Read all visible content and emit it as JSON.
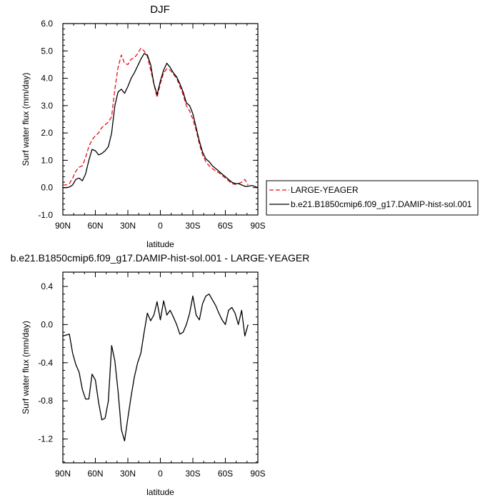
{
  "chart_data": [
    {
      "type": "line",
      "title": "DJF",
      "xlabel": "latitude",
      "ylabel": "Surf water flux (mm/day)",
      "xlim": [
        90,
        -90
      ],
      "ylim": [
        -1.0,
        6.0
      ],
      "x_ticks": [
        90,
        60,
        30,
        0,
        -30,
        -60,
        -90
      ],
      "x_tick_labels": [
        "90N",
        "60N",
        "30N",
        "0",
        "30S",
        "60S",
        "90S"
      ],
      "y_ticks": [
        -1.0,
        0.0,
        1.0,
        2.0,
        3.0,
        4.0,
        5.0,
        6.0
      ],
      "y_tick_labels": [
        "-1.0",
        "0.0",
        "1.0",
        "2.0",
        "3.0",
        "4.0",
        "5.0",
        "6.0"
      ],
      "legend_position": "right",
      "series": [
        {
          "name": "LARGE-YEAGER",
          "color": "#e8101a",
          "dash": "dashed",
          "x": [
            90,
            87,
            84,
            81,
            78,
            75,
            72,
            69,
            66,
            63,
            60,
            57,
            54,
            51,
            48,
            45,
            42,
            39,
            36,
            33,
            30,
            27,
            24,
            21,
            18,
            15,
            12,
            9,
            6,
            3,
            0,
            -3,
            -6,
            -9,
            -12,
            -15,
            -18,
            -21,
            -24,
            -27,
            -30,
            -33,
            -36,
            -39,
            -42,
            -45,
            -48,
            -51,
            -54,
            -57,
            -60,
            -63,
            -66,
            -69,
            -72,
            -75,
            -78,
            -81
          ],
          "values": [
            0.1,
            0.1,
            0.15,
            0.35,
            0.6,
            0.75,
            0.8,
            1.1,
            1.5,
            1.75,
            1.9,
            2.0,
            2.2,
            2.3,
            2.4,
            2.6,
            3.6,
            4.4,
            4.85,
            4.55,
            4.5,
            4.7,
            4.75,
            4.9,
            5.1,
            5.0,
            4.8,
            4.3,
            3.8,
            3.3,
            3.8,
            4.2,
            4.35,
            4.3,
            4.15,
            4.0,
            3.7,
            3.4,
            3.0,
            2.8,
            2.5,
            2.1,
            1.6,
            1.2,
            0.95,
            0.8,
            0.7,
            0.6,
            0.55,
            0.45,
            0.35,
            0.25,
            0.15,
            0.12,
            0.15,
            0.2,
            0.3,
            0.1
          ]
        },
        {
          "name": "b.e21.B1850cmip6.f09_g17.DAMIP-hist-sol.001",
          "color": "#000000",
          "dash": "solid",
          "x": [
            90,
            87,
            84,
            81,
            78,
            75,
            72,
            69,
            66,
            63,
            60,
            57,
            54,
            51,
            48,
            45,
            42,
            39,
            36,
            33,
            30,
            27,
            24,
            21,
            18,
            15,
            12,
            9,
            6,
            3,
            0,
            -3,
            -6,
            -9,
            -12,
            -15,
            -18,
            -21,
            -24,
            -27,
            -30,
            -33,
            -36,
            -39,
            -42,
            -45,
            -48,
            -51,
            -54,
            -57,
            -60,
            -63,
            -66,
            -69,
            -72,
            -75,
            -78,
            -81,
            -84,
            -87,
            -90
          ],
          "values": [
            0.0,
            0.0,
            0.02,
            0.1,
            0.3,
            0.35,
            0.25,
            0.5,
            1.0,
            1.4,
            1.35,
            1.2,
            1.25,
            1.35,
            1.5,
            2.0,
            3.0,
            3.5,
            3.6,
            3.45,
            3.7,
            4.0,
            4.2,
            4.45,
            4.7,
            4.9,
            4.85,
            4.5,
            3.8,
            3.4,
            3.9,
            4.3,
            4.55,
            4.4,
            4.2,
            4.05,
            3.8,
            3.5,
            3.1,
            3.0,
            2.7,
            2.2,
            1.7,
            1.3,
            1.05,
            0.95,
            0.8,
            0.7,
            0.6,
            0.5,
            0.4,
            0.3,
            0.2,
            0.15,
            0.15,
            0.1,
            0.05,
            0.05,
            0.08,
            0.05,
            0.0
          ]
        }
      ]
    },
    {
      "type": "line",
      "title": "b.e21.B1850cmip6.f09_g17.DAMIP-hist-sol.001 - LARGE-YEAGER",
      "xlabel": "latitude",
      "ylabel": "Surf water flux (mm/day)",
      "xlim": [
        90,
        -90
      ],
      "ylim": [
        -1.45,
        0.55
      ],
      "x_ticks": [
        90,
        60,
        30,
        0,
        -30,
        -60,
        -90
      ],
      "x_tick_labels": [
        "90N",
        "60N",
        "30N",
        "0",
        "30S",
        "60S",
        "90S"
      ],
      "y_ticks": [
        -1.2,
        -0.8,
        -0.4,
        0.0,
        0.4
      ],
      "y_tick_labels": [
        "-1.2",
        "-0.8",
        "-0.4",
        "0.0",
        "0.4"
      ],
      "series": [
        {
          "color": "#000000",
          "x": [
            90,
            87,
            84,
            81,
            78,
            75,
            72,
            69,
            66,
            63,
            60,
            57,
            54,
            51,
            48,
            45,
            42,
            39,
            36,
            33,
            30,
            27,
            24,
            21,
            18,
            15,
            12,
            9,
            6,
            3,
            0,
            -3,
            -6,
            -9,
            -12,
            -15,
            -18,
            -21,
            -24,
            -27,
            -30,
            -33,
            -36,
            -39,
            -42,
            -45,
            -48,
            -51,
            -54,
            -57,
            -60,
            -63,
            -66,
            -69,
            -72,
            -75,
            -78,
            -81
          ],
          "values": [
            -0.12,
            -0.11,
            -0.1,
            -0.3,
            -0.42,
            -0.5,
            -0.68,
            -0.78,
            -0.78,
            -0.52,
            -0.58,
            -0.82,
            -1.0,
            -0.98,
            -0.8,
            -0.22,
            -0.38,
            -0.7,
            -1.1,
            -1.22,
            -0.98,
            -0.75,
            -0.55,
            -0.4,
            -0.3,
            -0.08,
            0.12,
            0.04,
            0.1,
            0.24,
            0.05,
            0.25,
            0.1,
            0.15,
            0.08,
            0.0,
            -0.1,
            -0.08,
            0.0,
            0.12,
            0.3,
            0.1,
            0.05,
            0.22,
            0.3,
            0.32,
            0.26,
            0.2,
            0.12,
            0.05,
            0.0,
            0.15,
            0.18,
            0.12,
            0.0,
            0.15,
            -0.12,
            0.0
          ]
        }
      ]
    }
  ]
}
